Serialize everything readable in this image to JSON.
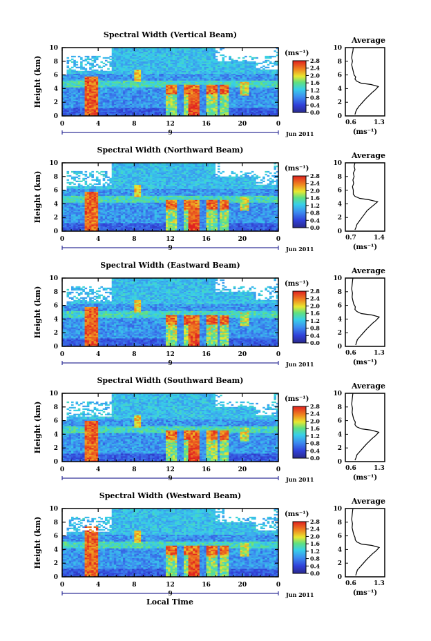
{
  "chart_data": [
    {
      "type": "heatmap",
      "title": "Spectral Width (Vertical Beam)",
      "ylabel": "Height (km)",
      "xticks": [
        "0",
        "4",
        "8",
        "12",
        "16",
        "20",
        "0"
      ],
      "yticks": [
        "0",
        "2",
        "4",
        "6",
        "8",
        "10"
      ],
      "xlim": [
        0,
        24
      ],
      "ylim": [
        0,
        10
      ],
      "date_label": "Jun 2011",
      "day_label": "9",
      "colorbar": {
        "unit": "(ms⁻¹)",
        "ticks": [
          "2.8",
          "2.4",
          "2.0",
          "1.6",
          "1.2",
          "0.8",
          "0.4",
          "0.0"
        ],
        "range": [
          0,
          2.8
        ]
      },
      "profile": {
        "title": "Average",
        "xticks": [
          "0.6",
          "1.3"
        ],
        "xlim": [
          0.6,
          1.3
        ],
        "yticks": [
          "0",
          "2",
          "4",
          "6",
          "8",
          "10"
        ],
        "xlabel": "(ms⁻¹)",
        "points": [
          [
            0.7,
            0.2
          ],
          [
            0.72,
            0.6
          ],
          [
            0.75,
            1.0
          ],
          [
            0.8,
            1.4
          ],
          [
            0.86,
            1.8
          ],
          [
            0.92,
            2.2
          ],
          [
            0.98,
            2.6
          ],
          [
            1.05,
            3.0
          ],
          [
            1.12,
            3.4
          ],
          [
            1.2,
            3.8
          ],
          [
            1.28,
            4.3
          ],
          [
            1.1,
            4.6
          ],
          [
            0.85,
            4.8
          ],
          [
            0.74,
            5.1
          ],
          [
            0.7,
            5.4
          ],
          [
            0.72,
            5.7
          ],
          [
            0.68,
            6.0
          ],
          [
            0.66,
            6.5
          ],
          [
            0.64,
            7.0
          ],
          [
            0.62,
            7.5
          ],
          [
            0.64,
            8.0
          ],
          [
            0.62,
            8.5
          ],
          [
            0.63,
            9.0
          ],
          [
            0.65,
            9.5
          ],
          [
            0.66,
            10.0
          ]
        ]
      }
    },
    {
      "type": "heatmap",
      "title": "Spectral Width (Northward Beam)",
      "ylabel": "Height (km)",
      "xticks": [
        "0",
        "4",
        "8",
        "12",
        "16",
        "20",
        "0"
      ],
      "yticks": [
        "0",
        "2",
        "4",
        "6",
        "8",
        "10"
      ],
      "xlim": [
        0,
        24
      ],
      "ylim": [
        0,
        10
      ],
      "date_label": "Jun 2011",
      "day_label": "9",
      "colorbar": {
        "unit": "(ms⁻¹)",
        "ticks": [
          "2.8",
          "2.4",
          "2.0",
          "1.6",
          "1.2",
          "0.8",
          "0.4",
          "0.0"
        ],
        "range": [
          0,
          2.8
        ]
      },
      "profile": {
        "title": "Average",
        "xticks": [
          "0.7",
          "1.4"
        ],
        "xlim": [
          0.7,
          1.4
        ],
        "yticks": [
          "0",
          "2",
          "4",
          "6",
          "8",
          "10"
        ],
        "xlabel": "(ms⁻¹)",
        "points": [
          [
            0.8,
            0.2
          ],
          [
            0.83,
            0.6
          ],
          [
            0.85,
            1.0
          ],
          [
            0.9,
            1.4
          ],
          [
            0.95,
            1.8
          ],
          [
            1.0,
            2.2
          ],
          [
            1.05,
            2.6
          ],
          [
            1.1,
            3.0
          ],
          [
            1.18,
            3.4
          ],
          [
            1.26,
            3.8
          ],
          [
            1.36,
            4.3
          ],
          [
            1.15,
            4.6
          ],
          [
            0.92,
            4.8
          ],
          [
            0.8,
            5.1
          ],
          [
            0.76,
            5.4
          ],
          [
            0.76,
            6.0
          ],
          [
            0.74,
            6.5
          ],
          [
            0.77,
            7.0
          ],
          [
            0.75,
            7.5
          ],
          [
            0.78,
            8.0
          ],
          [
            0.76,
            8.5
          ],
          [
            0.8,
            9.0
          ],
          [
            0.78,
            9.5
          ],
          [
            0.8,
            10.0
          ]
        ]
      }
    },
    {
      "type": "heatmap",
      "title": "Spectral Width (Eastward Beam)",
      "ylabel": "Height (km)",
      "xticks": [
        "0",
        "4",
        "8",
        "12",
        "16",
        "20",
        "0"
      ],
      "yticks": [
        "0",
        "2",
        "4",
        "6",
        "8",
        "10"
      ],
      "xlim": [
        0,
        24
      ],
      "ylim": [
        0,
        10
      ],
      "date_label": "Jun 2011",
      "day_label": "9",
      "colorbar": {
        "unit": "(ms⁻¹)",
        "ticks": [
          "2.8",
          "2.4",
          "2.0",
          "1.6",
          "1.2",
          "0.8",
          "0.4",
          "0.0"
        ],
        "range": [
          0,
          2.8
        ]
      },
      "profile": {
        "title": "Average",
        "xticks": [
          "0.6",
          "1.3"
        ],
        "xlim": [
          0.6,
          1.3
        ],
        "yticks": [
          "0",
          "2",
          "4",
          "6",
          "8",
          "10"
        ],
        "xlabel": "(ms⁻¹)",
        "points": [
          [
            0.72,
            0.2
          ],
          [
            0.74,
            0.6
          ],
          [
            0.76,
            1.0
          ],
          [
            0.82,
            1.4
          ],
          [
            0.88,
            1.8
          ],
          [
            0.94,
            2.2
          ],
          [
            1.0,
            2.6
          ],
          [
            1.07,
            3.0
          ],
          [
            1.14,
            3.4
          ],
          [
            1.22,
            3.8
          ],
          [
            1.3,
            4.3
          ],
          [
            1.12,
            4.6
          ],
          [
            0.86,
            4.8
          ],
          [
            0.75,
            5.1
          ],
          [
            0.7,
            5.4
          ],
          [
            0.71,
            5.8
          ],
          [
            0.67,
            6.2
          ],
          [
            0.65,
            6.7
          ],
          [
            0.63,
            7.2
          ],
          [
            0.64,
            7.8
          ],
          [
            0.62,
            8.4
          ],
          [
            0.63,
            9.0
          ],
          [
            0.64,
            9.5
          ],
          [
            0.65,
            10.0
          ]
        ]
      }
    },
    {
      "type": "heatmap",
      "title": "Spectral Width (Southward Beam)",
      "ylabel": "Height (km)",
      "xticks": [
        "0",
        "4",
        "8",
        "12",
        "16",
        "20",
        "0"
      ],
      "yticks": [
        "0",
        "2",
        "4",
        "6",
        "8",
        "10"
      ],
      "xlim": [
        0,
        24
      ],
      "ylim": [
        0,
        10
      ],
      "date_label": "Jun 2011",
      "day_label": "9",
      "colorbar": {
        "unit": "(ms⁻¹)",
        "ticks": [
          "2.8",
          "2.4",
          "2.0",
          "1.6",
          "1.2",
          "0.8",
          "0.4",
          "0.0"
        ],
        "range": [
          0,
          2.8
        ]
      },
      "profile": {
        "title": "Average",
        "xticks": [
          "0.6",
          "1.3"
        ],
        "xlim": [
          0.6,
          1.3
        ],
        "yticks": [
          "0",
          "2",
          "4",
          "6",
          "8",
          "10"
        ],
        "xlabel": "(ms⁻¹)",
        "points": [
          [
            0.7,
            0.2
          ],
          [
            0.73,
            0.6
          ],
          [
            0.75,
            1.0
          ],
          [
            0.81,
            1.4
          ],
          [
            0.87,
            1.8
          ],
          [
            0.93,
            2.2
          ],
          [
            0.99,
            2.6
          ],
          [
            1.06,
            3.0
          ],
          [
            1.13,
            3.4
          ],
          [
            1.21,
            3.8
          ],
          [
            1.29,
            4.3
          ],
          [
            1.11,
            4.6
          ],
          [
            0.86,
            4.8
          ],
          [
            0.74,
            5.1
          ],
          [
            0.7,
            5.4
          ],
          [
            0.71,
            5.8
          ],
          [
            0.67,
            6.2
          ],
          [
            0.65,
            6.7
          ],
          [
            0.63,
            7.2
          ],
          [
            0.64,
            7.8
          ],
          [
            0.62,
            8.4
          ],
          [
            0.63,
            9.0
          ],
          [
            0.64,
            9.5
          ],
          [
            0.65,
            10.0
          ]
        ]
      }
    },
    {
      "type": "heatmap",
      "title": "Spectral Width (Westward Beam)",
      "ylabel": "Height (km)",
      "xlabel": "Local Time",
      "xticks": [
        "0",
        "4",
        "8",
        "12",
        "16",
        "20",
        "0"
      ],
      "yticks": [
        "0",
        "2",
        "4",
        "6",
        "8",
        "10"
      ],
      "xlim": [
        0,
        24
      ],
      "ylim": [
        0,
        10
      ],
      "date_label": "Jun 2011",
      "day_label": "9",
      "colorbar": {
        "unit": "(ms⁻¹)",
        "ticks": [
          "2.8",
          "2.4",
          "2.0",
          "1.6",
          "1.2",
          "0.8",
          "0.4",
          "0.0"
        ],
        "range": [
          0,
          2.8
        ]
      },
      "profile": {
        "title": "Average",
        "xticks": [
          "0.6",
          "1.3"
        ],
        "xlim": [
          0.6,
          1.3
        ],
        "yticks": [
          "0",
          "2",
          "4",
          "6",
          "8",
          "10"
        ],
        "xlabel": "(ms⁻¹)",
        "points": [
          [
            0.72,
            0.2
          ],
          [
            0.74,
            0.6
          ],
          [
            0.76,
            1.0
          ],
          [
            0.82,
            1.4
          ],
          [
            0.88,
            1.8
          ],
          [
            0.94,
            2.2
          ],
          [
            1.0,
            2.6
          ],
          [
            1.07,
            3.0
          ],
          [
            1.14,
            3.4
          ],
          [
            1.22,
            3.8
          ],
          [
            1.3,
            4.3
          ],
          [
            1.12,
            4.6
          ],
          [
            0.86,
            4.8
          ],
          [
            0.75,
            5.1
          ],
          [
            0.71,
            5.4
          ],
          [
            0.7,
            5.8
          ],
          [
            0.67,
            6.2
          ],
          [
            0.65,
            6.7
          ],
          [
            0.63,
            7.2
          ],
          [
            0.64,
            7.8
          ],
          [
            0.62,
            8.4
          ],
          [
            0.63,
            9.0
          ],
          [
            0.64,
            9.5
          ],
          [
            0.65,
            10.0
          ]
        ]
      }
    }
  ]
}
